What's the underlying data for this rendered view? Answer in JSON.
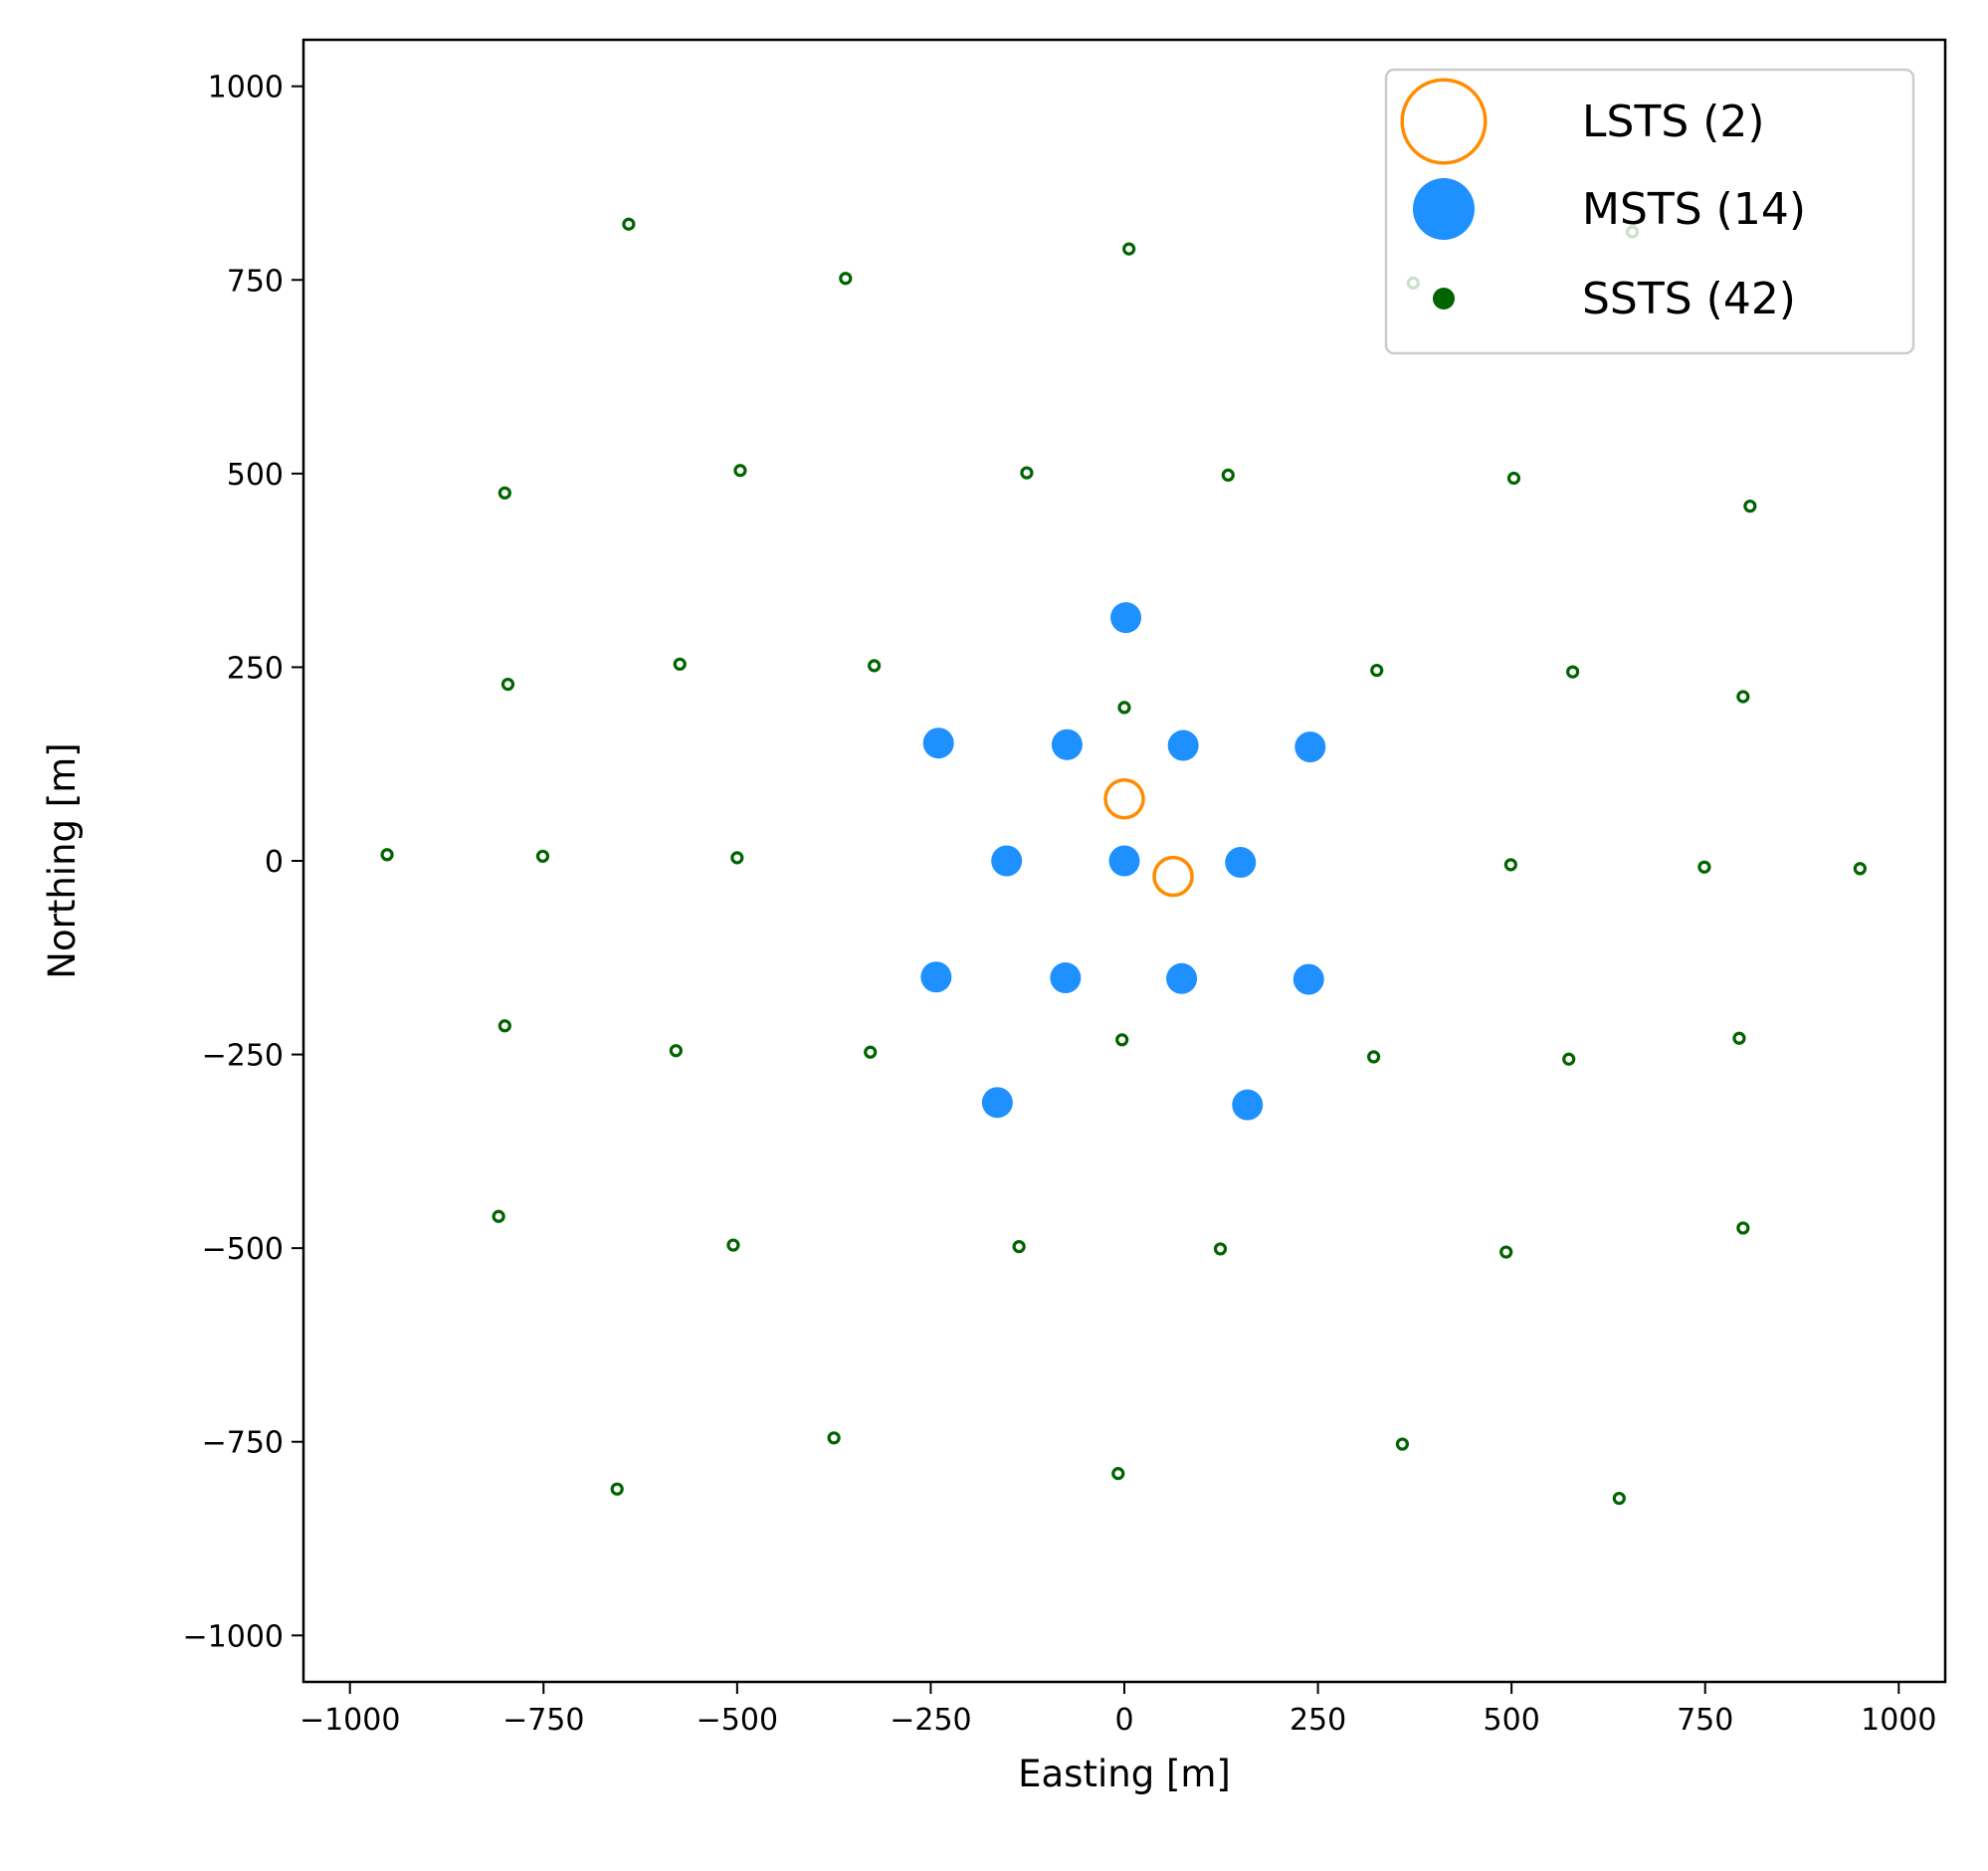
{
  "chart_data": {
    "type": "scatter",
    "xlabel": "Easting [m]",
    "ylabel": "Northing [m]",
    "xlim": [
      -1060,
      1060
    ],
    "ylim": [
      -1060,
      1060
    ],
    "xticks": [
      -1000,
      -750,
      -500,
      -250,
      0,
      250,
      500,
      750,
      1000
    ],
    "yticks": [
      -1000,
      -750,
      -500,
      -250,
      0,
      250,
      500,
      750,
      1000
    ],
    "xtick_labels": [
      "−1000",
      "−750",
      "−500",
      "−250",
      "0",
      "250",
      "500",
      "750",
      "1000"
    ],
    "ytick_labels": [
      "−1000",
      "−750",
      "−500",
      "−250",
      "0",
      "250",
      "500",
      "750",
      "1000"
    ],
    "grid": false,
    "legend_placement": "top-right",
    "series": [
      {
        "name": "LSTS (2)",
        "marker": "hollow-circle",
        "color": "#ff8c00",
        "points": [
          [
            0,
            80
          ],
          [
            63,
            -20
          ]
        ]
      },
      {
        "name": "MSTS (14)",
        "marker": "filled-circle",
        "color": "#1e90ff",
        "points": [
          [
            2,
            314
          ],
          [
            -240,
            152
          ],
          [
            -74,
            150
          ],
          [
            76,
            149
          ],
          [
            240,
            147
          ],
          [
            -152,
            0
          ],
          [
            0,
            0
          ],
          [
            150,
            -2
          ],
          [
            -243,
            -150
          ],
          [
            -76,
            -151
          ],
          [
            74,
            -152
          ],
          [
            238,
            -153
          ],
          [
            -164,
            -312
          ],
          [
            159,
            -315
          ]
        ]
      },
      {
        "name": "SSTS (42)",
        "marker": "small-ring",
        "color": "#006400",
        "points": [
          [
            -640,
            822
          ],
          [
            -360,
            752
          ],
          [
            6,
            790
          ],
          [
            373,
            746
          ],
          [
            656,
            812
          ],
          [
            -800,
            475
          ],
          [
            -496,
            504
          ],
          [
            -126,
            501
          ],
          [
            134,
            498
          ],
          [
            503,
            494
          ],
          [
            808,
            458
          ],
          [
            -796,
            228
          ],
          [
            -574,
            254
          ],
          [
            -323,
            252
          ],
          [
            326,
            246
          ],
          [
            579,
            244
          ],
          [
            799,
            212
          ],
          [
            0,
            198
          ],
          [
            -952,
            8
          ],
          [
            -751,
            6
          ],
          [
            -500,
            4
          ],
          [
            499,
            -5
          ],
          [
            749,
            -8
          ],
          [
            950,
            -10
          ],
          [
            -800,
            -213
          ],
          [
            -579,
            -245
          ],
          [
            -328,
            -247
          ],
          [
            -3,
            -231
          ],
          [
            322,
            -253
          ],
          [
            574,
            -256
          ],
          [
            794,
            -229
          ],
          [
            -808,
            -459
          ],
          [
            -505,
            -496
          ],
          [
            -136,
            -498
          ],
          [
            124,
            -501
          ],
          [
            493,
            -505
          ],
          [
            799,
            -474
          ],
          [
            -375,
            -745
          ],
          [
            -655,
            -811
          ],
          [
            -8,
            -791
          ],
          [
            359,
            -753
          ],
          [
            639,
            -823
          ]
        ]
      }
    ]
  }
}
